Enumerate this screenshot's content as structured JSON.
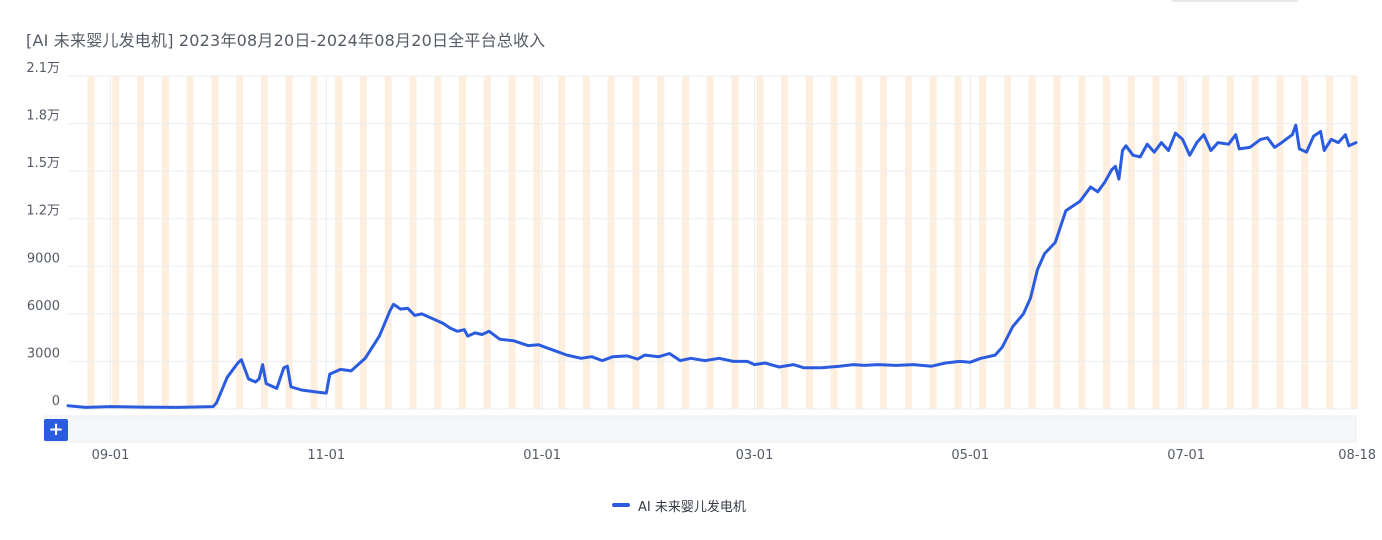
{
  "title": "[AI 未来婴儿发电机]  2023年08月20日-2024年08月20日全平台总收入",
  "zoom_label": "+",
  "colors": {
    "line": "#2b5ce0",
    "weekend_band": "#fdeedd",
    "grid": "#ebedf0",
    "navigator": "#f5f6f8"
  },
  "chart_data": {
    "type": "line",
    "title": "[AI 未来婴儿发电机]  2023年08月20日-2024年08月20日全平台总收入",
    "ylim": [
      0,
      21000
    ],
    "y_ticks": [
      0,
      3000,
      6000,
      9000,
      12000,
      15000,
      18000,
      21000
    ],
    "y_tick_labels": [
      "0",
      "3000",
      "6000",
      "9000",
      "1.2万",
      "1.5万",
      "1.8万",
      "2.1万"
    ],
    "x_start": "2023-08-20",
    "x_end": "2024-08-18",
    "x_ticks": [
      "2023-09-01",
      "2023-11-01",
      "2024-01-01",
      "2024-03-01",
      "2024-05-01",
      "2024-07-01",
      "2024-08-18"
    ],
    "x_tick_labels": [
      "09-01",
      "11-01",
      "01-01",
      "03-01",
      "05-01",
      "07-01",
      "08-18"
    ],
    "grid": true,
    "weekend_shading": true,
    "legend_position": "bottom-center",
    "series": [
      {
        "name": "AI 未来婴儿发电机",
        "points": [
          [
            "2023-08-20",
            200
          ],
          [
            "2023-08-25",
            100
          ],
          [
            "2023-09-01",
            150
          ],
          [
            "2023-09-10",
            120
          ],
          [
            "2023-09-20",
            100
          ],
          [
            "2023-09-30",
            150
          ],
          [
            "2023-10-01",
            400
          ],
          [
            "2023-10-04",
            2000
          ],
          [
            "2023-10-07",
            2900
          ],
          [
            "2023-10-08",
            3100
          ],
          [
            "2023-10-10",
            1900
          ],
          [
            "2023-10-12",
            1700
          ],
          [
            "2023-10-13",
            1900
          ],
          [
            "2023-10-14",
            2800
          ],
          [
            "2023-10-15",
            1600
          ],
          [
            "2023-10-18",
            1300
          ],
          [
            "2023-10-20",
            2600
          ],
          [
            "2023-10-21",
            2700
          ],
          [
            "2023-10-22",
            1400
          ],
          [
            "2023-10-25",
            1200
          ],
          [
            "2023-10-30",
            1050
          ],
          [
            "2023-11-01",
            1000
          ],
          [
            "2023-11-02",
            2200
          ],
          [
            "2023-11-05",
            2500
          ],
          [
            "2023-11-08",
            2400
          ],
          [
            "2023-11-12",
            3200
          ],
          [
            "2023-11-16",
            4600
          ],
          [
            "2023-11-19",
            6200
          ],
          [
            "2023-11-20",
            6600
          ],
          [
            "2023-11-22",
            6300
          ],
          [
            "2023-11-24",
            6350
          ],
          [
            "2023-11-26",
            5900
          ],
          [
            "2023-11-28",
            6000
          ],
          [
            "2023-12-01",
            5700
          ],
          [
            "2023-12-04",
            5400
          ],
          [
            "2023-12-06",
            5100
          ],
          [
            "2023-12-08",
            4900
          ],
          [
            "2023-12-10",
            5000
          ],
          [
            "2023-12-11",
            4600
          ],
          [
            "2023-12-13",
            4800
          ],
          [
            "2023-12-15",
            4700
          ],
          [
            "2023-12-17",
            4900
          ],
          [
            "2023-12-20",
            4400
          ],
          [
            "2023-12-24",
            4300
          ],
          [
            "2023-12-28",
            4000
          ],
          [
            "2023-12-31",
            4050
          ],
          [
            "2024-01-03",
            3800
          ],
          [
            "2024-01-08",
            3400
          ],
          [
            "2024-01-12",
            3200
          ],
          [
            "2024-01-15",
            3300
          ],
          [
            "2024-01-18",
            3050
          ],
          [
            "2024-01-21",
            3300
          ],
          [
            "2024-01-25",
            3350
          ],
          [
            "2024-01-28",
            3150
          ],
          [
            "2024-01-30",
            3400
          ],
          [
            "2024-02-03",
            3300
          ],
          [
            "2024-02-06",
            3500
          ],
          [
            "2024-02-09",
            3050
          ],
          [
            "2024-02-12",
            3200
          ],
          [
            "2024-02-16",
            3050
          ],
          [
            "2024-02-20",
            3200
          ],
          [
            "2024-02-24",
            3000
          ],
          [
            "2024-02-28",
            3000
          ],
          [
            "2024-03-01",
            2800
          ],
          [
            "2024-03-04",
            2900
          ],
          [
            "2024-03-08",
            2650
          ],
          [
            "2024-03-12",
            2800
          ],
          [
            "2024-03-15",
            2600
          ],
          [
            "2024-03-20",
            2600
          ],
          [
            "2024-03-25",
            2700
          ],
          [
            "2024-03-29",
            2800
          ],
          [
            "2024-04-01",
            2750
          ],
          [
            "2024-04-05",
            2800
          ],
          [
            "2024-04-10",
            2750
          ],
          [
            "2024-04-15",
            2800
          ],
          [
            "2024-04-20",
            2700
          ],
          [
            "2024-04-24",
            2900
          ],
          [
            "2024-04-28",
            3000
          ],
          [
            "2024-05-01",
            2950
          ],
          [
            "2024-05-04",
            3200
          ],
          [
            "2024-05-08",
            3400
          ],
          [
            "2024-05-10",
            3900
          ],
          [
            "2024-05-13",
            5200
          ],
          [
            "2024-05-16",
            6000
          ],
          [
            "2024-05-18",
            7000
          ],
          [
            "2024-05-20",
            8800
          ],
          [
            "2024-05-22",
            9800
          ],
          [
            "2024-05-25",
            10500
          ],
          [
            "2024-05-28",
            12500
          ],
          [
            "2024-05-30",
            12800
          ],
          [
            "2024-06-01",
            13100
          ],
          [
            "2024-06-04",
            14000
          ],
          [
            "2024-06-06",
            13700
          ],
          [
            "2024-06-08",
            14300
          ],
          [
            "2024-06-10",
            15100
          ],
          [
            "2024-06-11",
            15300
          ],
          [
            "2024-06-12",
            14500
          ],
          [
            "2024-06-13",
            16300
          ],
          [
            "2024-06-14",
            16600
          ],
          [
            "2024-06-16",
            16000
          ],
          [
            "2024-06-18",
            15900
          ],
          [
            "2024-06-20",
            16700
          ],
          [
            "2024-06-22",
            16200
          ],
          [
            "2024-06-24",
            16800
          ],
          [
            "2024-06-26",
            16300
          ],
          [
            "2024-06-28",
            17400
          ],
          [
            "2024-06-30",
            17000
          ],
          [
            "2024-07-02",
            16000
          ],
          [
            "2024-07-04",
            16800
          ],
          [
            "2024-07-06",
            17300
          ],
          [
            "2024-07-08",
            16300
          ],
          [
            "2024-07-10",
            16800
          ],
          [
            "2024-07-13",
            16700
          ],
          [
            "2024-07-15",
            17300
          ],
          [
            "2024-07-16",
            16400
          ],
          [
            "2024-07-19",
            16500
          ],
          [
            "2024-07-22",
            17000
          ],
          [
            "2024-07-24",
            17100
          ],
          [
            "2024-07-26",
            16500
          ],
          [
            "2024-07-28",
            16800
          ],
          [
            "2024-07-31",
            17300
          ],
          [
            "2024-08-01",
            17900
          ],
          [
            "2024-08-02",
            16400
          ],
          [
            "2024-08-04",
            16200
          ],
          [
            "2024-08-06",
            17200
          ],
          [
            "2024-08-08",
            17500
          ],
          [
            "2024-08-09",
            16300
          ],
          [
            "2024-08-11",
            17000
          ],
          [
            "2024-08-13",
            16800
          ],
          [
            "2024-08-15",
            17300
          ],
          [
            "2024-08-16",
            16600
          ],
          [
            "2024-08-18",
            16800
          ]
        ]
      }
    ]
  }
}
